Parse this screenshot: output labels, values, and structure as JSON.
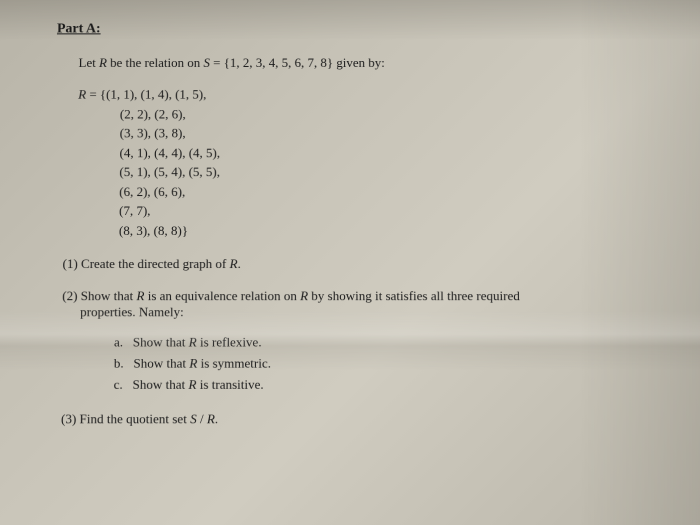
{
  "header": "Part A:",
  "intro": "Let R be the relation on S = {1, 2, 3, 4, 5, 6, 7, 8} given by:",
  "relation": {
    "lines": [
      "R = {(1, 1), (1, 4), (1, 5),",
      "(2, 2), (2, 6),",
      "(3, 3), (3, 8),",
      "(4, 1), (4, 4), (4, 5),",
      "(5, 1), (5, 4), (5, 5),",
      "(6, 2), (6, 6),",
      "(7, 7),",
      "(8, 3), (8, 8)}"
    ]
  },
  "q1": "(1) Create the directed graph of R.",
  "q2_line1": "(2) Show that R is an equivalence relation on R by showing it satisfies all three required",
  "q2_line2": "properties. Namely:",
  "sub": {
    "a": "a.   Show that R is reflexive.",
    "b": "b.   Show that R is symmetric.",
    "c": "c.   Show that R is transitive."
  },
  "q3": "(3) Find the quotient set S / R."
}
